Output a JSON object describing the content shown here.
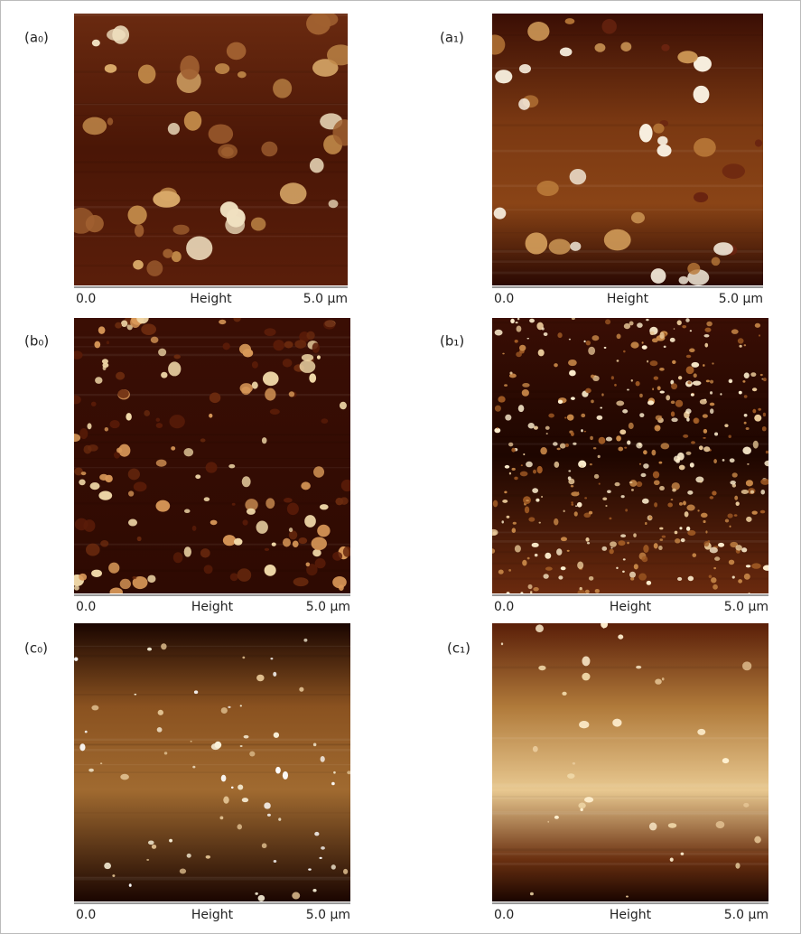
{
  "panels": [
    {
      "label": "(a₀)",
      "axis": {
        "start": "0.0",
        "title": "Height",
        "end": "5.0 µm"
      }
    },
    {
      "label": "(a₁)",
      "axis": {
        "start": "0.0",
        "title": "Height",
        "end": "5.0 µm"
      }
    },
    {
      "label": "(b₀)",
      "axis": {
        "start": "0.0",
        "title": "Height",
        "end": "5.0 µm"
      }
    },
    {
      "label": "(b₁)",
      "axis": {
        "start": "0.0",
        "title": "Height",
        "end": "5.0 µm"
      }
    },
    {
      "label": "(c₀)",
      "axis": {
        "start": "0.0",
        "title": "Height",
        "end": "5.0 µm"
      }
    },
    {
      "label": "(c₁)",
      "axis": {
        "start": "0.0",
        "title": "Height",
        "end": "5.0 µm"
      }
    }
  ]
}
